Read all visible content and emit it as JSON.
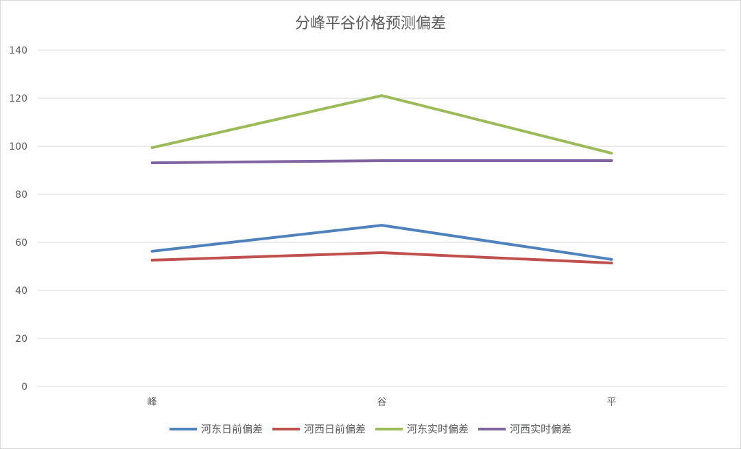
{
  "chart_data": {
    "type": "line",
    "title": "分峰平谷价格预测偏差",
    "categories": [
      "峰",
      "谷",
      "平"
    ],
    "ylim": [
      0,
      140
    ],
    "yticks": [
      0,
      20,
      40,
      60,
      80,
      100,
      120,
      140
    ],
    "grid": true,
    "legend_position": "bottom",
    "series": [
      {
        "name": "河东日前偏差",
        "color": "#4f81bd",
        "values": [
          56.3,
          67.1,
          52.9
        ]
      },
      {
        "name": "河西日前偏差",
        "color": "#c0504d",
        "values": [
          52.6,
          55.7,
          51.4
        ]
      },
      {
        "name": "河东实时偏差",
        "color": "#9bbb59",
        "values": [
          99.4,
          121.1,
          97.1
        ]
      },
      {
        "name": "河西实时偏差",
        "color": "#8064a2",
        "values": [
          93.1,
          94.0,
          94.0
        ]
      }
    ]
  }
}
